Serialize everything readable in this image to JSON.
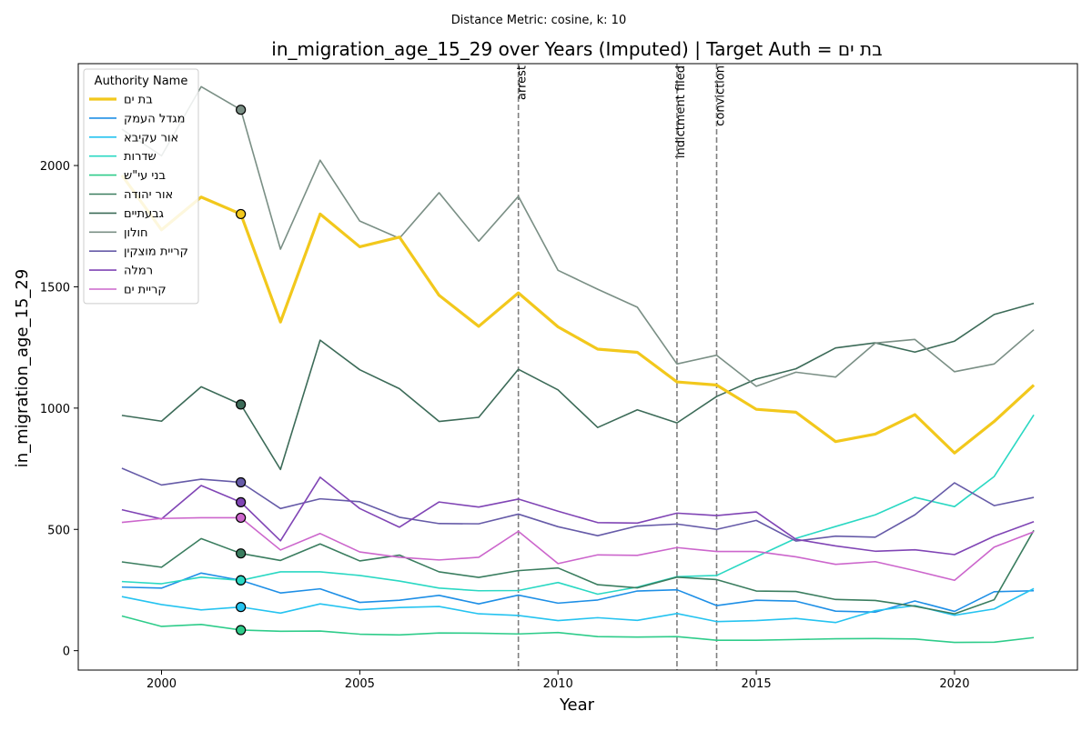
{
  "chart_data": {
    "type": "line",
    "suptitle": "Distance Metric: cosine, k: 10",
    "title": "in_migration_age_15_29 over Years (Imputed) | Target Auth = בת ים",
    "xlabel": "Year",
    "ylabel": "in_migration_age_15_29",
    "xlim": [
      1997.9,
      2023.1
    ],
    "ylim": [
      -80,
      2420
    ],
    "xticks": [
      2000,
      2005,
      2010,
      2015,
      2020
    ],
    "yticks": [
      0,
      500,
      1000,
      1500,
      2000
    ],
    "grid": false,
    "legend_title": "Authority Name",
    "legend_position": "top-left",
    "marker_year": 2002,
    "events": [
      {
        "year": 2009,
        "label": "arrest"
      },
      {
        "year": 2013,
        "label": "indictment filed"
      },
      {
        "year": 2014,
        "label": "conviction"
      }
    ],
    "x": [
      1999,
      2000,
      2001,
      2002,
      2003,
      2004,
      2005,
      2006,
      2007,
      2008,
      2009,
      2010,
      2011,
      2012,
      2013,
      2014,
      2015,
      2016,
      2017,
      2018,
      2019,
      2020,
      2021,
      2022
    ],
    "series": [
      {
        "name": "בת ים",
        "color": "#f2c81c",
        "target": true,
        "values": [
          1960,
          1735,
          1870,
          1800,
          1355,
          1800,
          1665,
          1705,
          1465,
          1337,
          1475,
          1335,
          1243,
          1230,
          1108,
          1095,
          995,
          983,
          862,
          893,
          973,
          815,
          945,
          1095
        ]
      },
      {
        "name": "מגדל העמק",
        "color": "#1e8fe6",
        "values": [
          262,
          258,
          320,
          290,
          238,
          255,
          199,
          208,
          228,
          193,
          229,
          196,
          209,
          246,
          251,
          186,
          208,
          204,
          163,
          159,
          205,
          162,
          243,
          247
        ]
      },
      {
        "name": "אור עקיבא",
        "color": "#25c3f0",
        "values": [
          223,
          190,
          168,
          180,
          155,
          193,
          169,
          178,
          182,
          152,
          145,
          124,
          136,
          125,
          153,
          120,
          124,
          133,
          116,
          165,
          186,
          146,
          172,
          256
        ]
      },
      {
        "name": "שדרות",
        "color": "#2ad8c3",
        "values": [
          285,
          276,
          303,
          290,
          325,
          325,
          310,
          287,
          258,
          247,
          248,
          281,
          233,
          262,
          305,
          310,
          387,
          463,
          512,
          560,
          632,
          594,
          718,
          972
        ]
      },
      {
        "name": "בני עי\"ש",
        "color": "#2ecc8a",
        "values": [
          143,
          100,
          108,
          85,
          80,
          81,
          68,
          65,
          73,
          72,
          69,
          75,
          58,
          56,
          58,
          43,
          43,
          46,
          49,
          50,
          48,
          34,
          35,
          54
        ]
      },
      {
        "name": "אור יהודה",
        "color": "#3a7d5f",
        "values": [
          366,
          344,
          462,
          401,
          372,
          440,
          370,
          394,
          325,
          302,
          330,
          341,
          272,
          259,
          303,
          293,
          246,
          244,
          211,
          207,
          183,
          152,
          210,
          496
        ]
      },
      {
        "name": "גבעתיים",
        "color": "#3c6b58",
        "values": [
          970,
          946,
          1088,
          1015,
          747,
          1280,
          1158,
          1080,
          945,
          962,
          1160,
          1075,
          920,
          993,
          939,
          1048,
          1120,
          1162,
          1248,
          1269,
          1231,
          1276,
          1386,
          1432
        ]
      },
      {
        "name": "חולון",
        "color": "#7a8f85",
        "values": [
          2150,
          2040,
          2325,
          2230,
          1655,
          2022,
          1771,
          1700,
          1888,
          1688,
          1873,
          1568,
          1490,
          1416,
          1182,
          1218,
          1090,
          1148,
          1128,
          1268,
          1283,
          1150,
          1182,
          1323
        ]
      },
      {
        "name": "קריית מוצקין",
        "color": "#665ba8",
        "values": [
          752,
          683,
          707,
          694,
          586,
          626,
          614,
          550,
          524,
          523,
          563,
          511,
          474,
          514,
          522,
          500,
          537,
          452,
          472,
          468,
          560,
          692,
          598,
          632
        ]
      },
      {
        "name": "רמלה",
        "color": "#8045b5",
        "values": [
          581,
          543,
          681,
          612,
          453,
          715,
          586,
          509,
          613,
          592,
          625,
          575,
          528,
          526,
          567,
          557,
          572,
          459,
          432,
          410,
          416,
          396,
          472,
          532
        ]
      },
      {
        "name": "קריית ים",
        "color": "#cc66cc",
        "values": [
          529,
          545,
          548,
          548,
          415,
          483,
          407,
          385,
          374,
          385,
          492,
          359,
          395,
          393,
          425,
          409,
          409,
          387,
          356,
          367,
          330,
          290,
          427,
          490
        ]
      }
    ]
  }
}
